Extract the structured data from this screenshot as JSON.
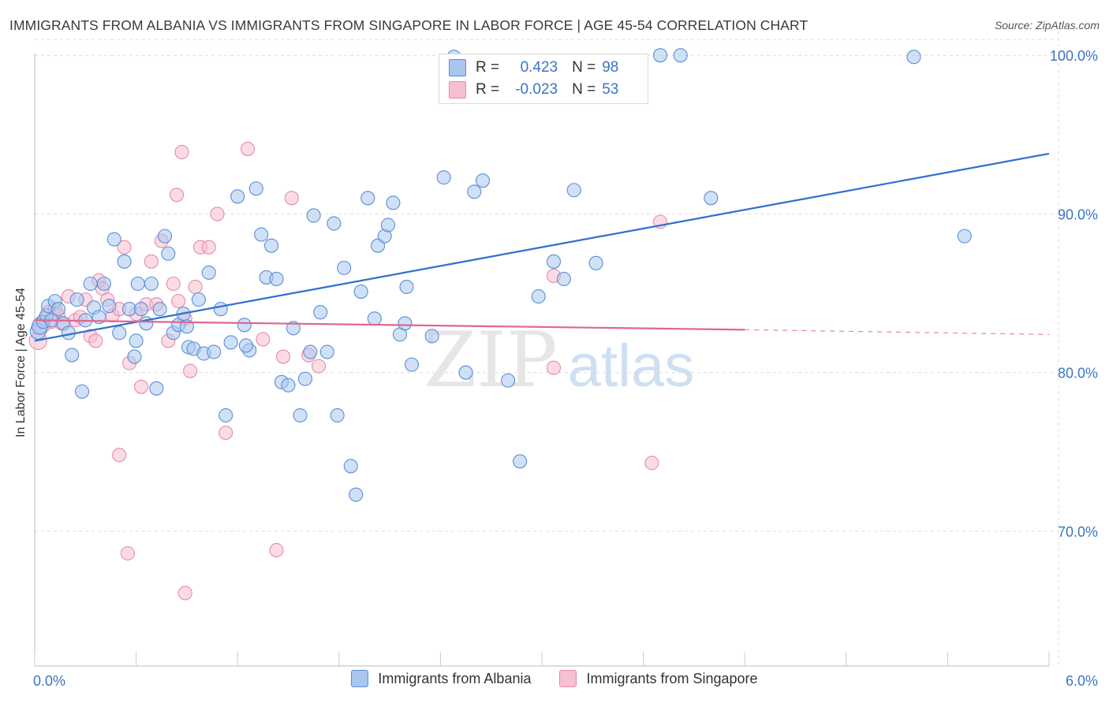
{
  "header": {
    "title": "IMMIGRANTS FROM ALBANIA VS IMMIGRANTS FROM SINGAPORE IN LABOR FORCE | AGE 45-54 CORRELATION CHART",
    "source": "Source: ZipAtlas.com"
  },
  "legend": {
    "albania": {
      "r_label": "R =",
      "r_value": "0.423",
      "n_label": "N =",
      "n_value": "98"
    },
    "singapore": {
      "r_label": "R =",
      "r_value": "-0.023",
      "n_label": "N =",
      "n_value": "53"
    }
  },
  "colors": {
    "albania_fill": "#a9c6f0",
    "albania_stroke": "#5b8fd6",
    "albania_line": "#2e6fcf",
    "singapore_fill": "#f7bfd0",
    "singapore_stroke": "#e88aa8",
    "singapore_line": "#e06690",
    "grid": "#dcdcdc",
    "tick_text": "#3a74c4"
  },
  "watermark": {
    "zip": "ZIP",
    "atlas": "atlas"
  },
  "chart_data": {
    "type": "scatter",
    "title": "IMMIGRANTS FROM ALBANIA VS IMMIGRANTS FROM SINGAPORE IN LABOR FORCE | AGE 45-54 CORRELATION CHART",
    "xlabel": "",
    "ylabel": "In Labor Force | Age 45-54",
    "xlim": [
      0,
      6
    ],
    "ylim": [
      61.5,
      101.5
    ],
    "x_tick_labels": [
      "0.0%",
      "6.0%"
    ],
    "y_ticks": [
      70,
      80,
      90,
      100
    ],
    "y_tick_labels": [
      "70.0%",
      "80.0%",
      "90.0%",
      "100.0%"
    ],
    "legend_position": "top-center",
    "series": [
      {
        "name": "Immigrants from Albania",
        "R": 0.423,
        "N": 98,
        "trend": {
          "x": [
            0,
            6
          ],
          "y": [
            82.0,
            93.8
          ],
          "style": "solid"
        },
        "points": [
          [
            0.02,
            82.6
          ],
          [
            0.03,
            82.9
          ],
          [
            0.05,
            83.2
          ],
          [
            0.07,
            83.6
          ],
          [
            0.08,
            84.2
          ],
          [
            0.1,
            83.3
          ],
          [
            0.12,
            84.5
          ],
          [
            0.14,
            84.0
          ],
          [
            0.17,
            83.1
          ],
          [
            0.2,
            82.5
          ],
          [
            0.22,
            81.1
          ],
          [
            0.25,
            84.6
          ],
          [
            0.28,
            78.8
          ],
          [
            0.3,
            83.3
          ],
          [
            0.33,
            85.6
          ],
          [
            0.35,
            84.1
          ],
          [
            0.38,
            83.5
          ],
          [
            0.41,
            85.6
          ],
          [
            0.44,
            84.2
          ],
          [
            0.47,
            88.4
          ],
          [
            0.5,
            82.5
          ],
          [
            0.53,
            87.0
          ],
          [
            0.56,
            84.0
          ],
          [
            0.59,
            81.0
          ],
          [
            0.61,
            85.6
          ],
          [
            0.63,
            84.0
          ],
          [
            0.66,
            83.1
          ],
          [
            0.69,
            85.6
          ],
          [
            0.72,
            79.0
          ],
          [
            0.74,
            84.0
          ],
          [
            0.77,
            88.6
          ],
          [
            0.79,
            87.5
          ],
          [
            0.82,
            82.5
          ],
          [
            0.85,
            83.0
          ],
          [
            0.88,
            83.7
          ],
          [
            0.91,
            81.6
          ],
          [
            0.94,
            81.5
          ],
          [
            0.97,
            84.6
          ],
          [
            1.0,
            81.2
          ],
          [
            1.03,
            86.3
          ],
          [
            1.06,
            81.3
          ],
          [
            1.1,
            84.0
          ],
          [
            1.13,
            77.3
          ],
          [
            1.16,
            81.9
          ],
          [
            1.2,
            91.1
          ],
          [
            1.24,
            83.0
          ],
          [
            1.27,
            81.4
          ],
          [
            1.31,
            91.6
          ],
          [
            1.34,
            88.7
          ],
          [
            1.37,
            86.0
          ],
          [
            1.4,
            88.0
          ],
          [
            1.43,
            85.9
          ],
          [
            1.46,
            79.4
          ],
          [
            1.5,
            79.2
          ],
          [
            1.53,
            82.8
          ],
          [
            1.57,
            77.3
          ],
          [
            1.6,
            79.6
          ],
          [
            1.63,
            81.3
          ],
          [
            1.65,
            89.9
          ],
          [
            1.69,
            83.8
          ],
          [
            1.73,
            81.3
          ],
          [
            1.77,
            89.4
          ],
          [
            1.79,
            77.3
          ],
          [
            1.83,
            86.6
          ],
          [
            1.87,
            74.1
          ],
          [
            1.9,
            72.3
          ],
          [
            1.93,
            85.1
          ],
          [
            1.97,
            91.0
          ],
          [
            2.01,
            83.4
          ],
          [
            2.03,
            88.0
          ],
          [
            2.07,
            88.6
          ],
          [
            2.09,
            89.3
          ],
          [
            2.12,
            90.7
          ],
          [
            2.16,
            82.4
          ],
          [
            2.19,
            83.1
          ],
          [
            2.2,
            85.4
          ],
          [
            2.23,
            80.5
          ],
          [
            2.35,
            82.3
          ],
          [
            2.42,
            92.3
          ],
          [
            2.55,
            80.0
          ],
          [
            2.6,
            91.4
          ],
          [
            2.65,
            92.1
          ],
          [
            2.8,
            79.5
          ],
          [
            2.87,
            74.4
          ],
          [
            2.98,
            84.8
          ],
          [
            3.07,
            87.0
          ],
          [
            3.13,
            85.9
          ],
          [
            3.19,
            91.5
          ],
          [
            3.32,
            86.9
          ],
          [
            2.48,
            99.9
          ],
          [
            3.7,
            100.0
          ],
          [
            3.82,
            100.0
          ],
          [
            4.0,
            91.0
          ],
          [
            5.2,
            99.9
          ],
          [
            5.5,
            88.6
          ],
          [
            0.6,
            82.0
          ],
          [
            0.9,
            82.9
          ],
          [
            1.25,
            81.7
          ]
        ]
      },
      {
        "name": "Immigrants from Singapore",
        "R": -0.023,
        "N": 53,
        "trend": {
          "x": [
            0,
            4.2
          ],
          "y": [
            83.3,
            82.7
          ],
          "dashed_extension": {
            "x": [
              4.2,
              6
            ],
            "y": [
              82.7,
              82.4
            ]
          }
        },
        "points": [
          [
            0.02,
            82.0
          ],
          [
            0.04,
            83.0
          ],
          [
            0.06,
            83.4
          ],
          [
            0.08,
            83.8
          ],
          [
            0.1,
            83.2
          ],
          [
            0.12,
            84.0
          ],
          [
            0.14,
            83.6
          ],
          [
            0.16,
            83.1
          ],
          [
            0.2,
            84.8
          ],
          [
            0.24,
            83.3
          ],
          [
            0.27,
            83.5
          ],
          [
            0.3,
            84.6
          ],
          [
            0.33,
            82.3
          ],
          [
            0.36,
            82.0
          ],
          [
            0.38,
            85.8
          ],
          [
            0.4,
            85.3
          ],
          [
            0.43,
            84.6
          ],
          [
            0.46,
            83.6
          ],
          [
            0.5,
            84.0
          ],
          [
            0.53,
            87.9
          ],
          [
            0.56,
            80.6
          ],
          [
            0.6,
            83.7
          ],
          [
            0.63,
            79.1
          ],
          [
            0.66,
            84.3
          ],
          [
            0.69,
            87.0
          ],
          [
            0.72,
            84.3
          ],
          [
            0.75,
            88.3
          ],
          [
            0.79,
            82.0
          ],
          [
            0.82,
            85.6
          ],
          [
            0.85,
            84.5
          ],
          [
            0.89,
            83.4
          ],
          [
            0.92,
            80.1
          ],
          [
            0.95,
            85.4
          ],
          [
            0.98,
            87.9
          ],
          [
            1.03,
            87.9
          ],
          [
            1.08,
            90.0
          ],
          [
            1.13,
            76.2
          ],
          [
            1.26,
            94.1
          ],
          [
            1.35,
            82.1
          ],
          [
            1.47,
            81.0
          ],
          [
            1.52,
            91.0
          ],
          [
            1.62,
            81.1
          ],
          [
            1.68,
            80.4
          ],
          [
            0.87,
            93.9
          ],
          [
            0.84,
            91.2
          ],
          [
            0.5,
            74.8
          ],
          [
            0.55,
            68.6
          ],
          [
            0.89,
            66.1
          ],
          [
            1.43,
            68.8
          ],
          [
            3.07,
            86.1
          ],
          [
            3.07,
            80.3
          ],
          [
            3.65,
            74.3
          ],
          [
            3.7,
            89.5
          ]
        ]
      }
    ]
  },
  "bottom_legend": {
    "albania_label": "Immigrants from Albania",
    "singapore_label": "Immigrants from Singapore"
  }
}
